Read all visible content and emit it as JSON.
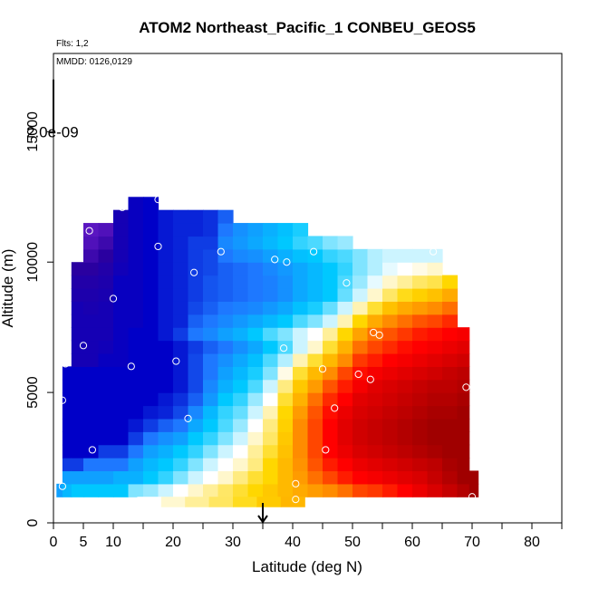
{
  "chart_data": {
    "type": "heatmap",
    "title": "ATOM2 Northeast_Pacific_1 CONBEU_GEOS5",
    "flights_note": "Flts: 1,2",
    "dates_note": "MMDD: 0126,0129",
    "xlabel": "Latitude (deg N)",
    "ylabel": "Altitude (m)",
    "xlim": [
      0,
      85
    ],
    "ylim": [
      0,
      18000
    ],
    "x_ticks": [
      0,
      5,
      10,
      20,
      30,
      40,
      50,
      60,
      70,
      80
    ],
    "x_minor_ticks": [
      15,
      25,
      35,
      45,
      55,
      65,
      75,
      85
    ],
    "y_ticks": [
      0,
      5000,
      10000,
      15000
    ],
    "scale_bar_label": "2.0e-09",
    "scale_bar_top_altitude": 17000,
    "scale_bar_bottom_altitude": 15000,
    "arrow_latitude": 35,
    "grid": false,
    "colormap": [
      "#8a2be2",
      "#2a00a0",
      "#0000c8",
      "#1e78ff",
      "#00c8ff",
      "#ffffff",
      "#ffd700",
      "#ff8c00",
      "#ff0000",
      "#a00000"
    ],
    "columns": [
      {
        "lat": 0.5,
        "top": 1500,
        "values": [
          3.5
        ]
      },
      {
        "lat": 1.5,
        "top": 6500,
        "values": [
          3.8,
          3.5,
          2.5,
          2.0,
          2.0,
          2.0,
          2.0,
          2.0,
          2.0,
          2.0
        ]
      },
      {
        "lat": 3,
        "top": 10000,
        "values": [
          4.0,
          3.5,
          2.5,
          2.0,
          2.0,
          2.0,
          2.0,
          2.0,
          2.0,
          2.0,
          1.5,
          1.5,
          1.5,
          1.5,
          1.5,
          1.3,
          1.2,
          1.0,
          1.0,
          0.8
        ]
      },
      {
        "lat": 5,
        "top": 11500,
        "values": [
          4.0,
          3.5,
          3.0,
          2.0,
          2.0,
          2.0,
          2.0,
          2.0,
          2.0,
          2.0,
          1.5,
          1.5,
          1.5,
          1.5,
          1.4,
          1.3,
          1.2,
          1.0,
          0.8,
          0.6,
          0.5,
          0.5,
          0.5
        ]
      },
      {
        "lat": 7.5,
        "top": 11500,
        "values": [
          4.0,
          3.5,
          3.0,
          2.5,
          2.0,
          2.0,
          2.0,
          2.0,
          2.0,
          2.0,
          1.8,
          1.6,
          1.5,
          1.5,
          1.5,
          1.4,
          1.3,
          1.2,
          1.0,
          0.8,
          0.6,
          0.5,
          0.5
        ]
      },
      {
        "lat": 10,
        "top": 12000,
        "values": [
          4.0,
          3.7,
          3.0,
          2.5,
          2.0,
          2.0,
          2.0,
          2.0,
          2.0,
          2.0,
          1.8,
          1.8,
          1.8,
          1.8,
          1.8,
          1.8,
          1.8,
          1.6,
          1.5,
          1.5,
          1.5,
          1.5,
          1.5,
          1.5
        ]
      },
      {
        "lat": 12.5,
        "top": 12500,
        "values": [
          4.5,
          3.7,
          3.5,
          3.0,
          2.5,
          2.2,
          2.0,
          2.0,
          2.0,
          2.0,
          2.0,
          2.0,
          2.0,
          1.8,
          1.8,
          1.8,
          1.8,
          1.8,
          1.8,
          1.8,
          1.8,
          1.8,
          1.8,
          1.8,
          1.8
        ]
      },
      {
        "lat": 15,
        "top": 12500,
        "values": [
          4.6,
          4.0,
          3.8,
          3.5,
          3.0,
          2.5,
          2.2,
          2.0,
          2.0,
          2.0,
          2.0,
          2.0,
          2.0,
          2.0,
          2.0,
          2.0,
          2.0,
          2.0,
          2.0,
          2.0,
          2.0,
          2.0,
          2.0,
          2.0,
          2.0
        ]
      },
      {
        "lat": 17.5,
        "top": 12000,
        "values": [
          4.8,
          4.2,
          4.0,
          3.7,
          3.3,
          2.8,
          2.3,
          2.2,
          2.0,
          2.0,
          2.0,
          2.0,
          2.2,
          2.2,
          2.2,
          2.2,
          2.2,
          2.2,
          2.2,
          2.2,
          2.2,
          2.2,
          2.2,
          2.2
        ]
      },
      {
        "lat": 20,
        "top": 12000,
        "values": [
          5.0,
          4.5,
          4.2,
          4.0,
          3.5,
          3.0,
          2.6,
          2.4,
          2.2,
          2.2,
          2.2,
          2.2,
          2.5,
          2.3,
          2.3,
          2.3,
          2.3,
          2.3,
          2.3,
          2.3,
          2.3,
          2.3,
          2.3,
          2.3
        ]
      },
      {
        "lat": 22.5,
        "top": 12000,
        "values": [
          5.2,
          4.8,
          4.5,
          4.2,
          4.0,
          3.6,
          3.2,
          2.8,
          2.6,
          2.6,
          2.6,
          2.5,
          3.0,
          2.8,
          2.6,
          2.5,
          2.5,
          2.5,
          2.5,
          2.5,
          2.3,
          2.3,
          2.3,
          2.3
        ]
      },
      {
        "lat": 25,
        "top": 12000,
        "values": [
          5.4,
          5.0,
          4.8,
          4.5,
          4.2,
          4.0,
          3.8,
          3.4,
          3.2,
          3.0,
          3.0,
          2.8,
          3.2,
          3.0,
          2.8,
          2.7,
          2.7,
          2.6,
          2.6,
          2.5,
          2.4,
          2.4,
          2.3,
          2.3
        ]
      },
      {
        "lat": 27.5,
        "top": 12000,
        "values": [
          5.6,
          5.2,
          5.0,
          4.8,
          4.5,
          4.3,
          4.2,
          4.0,
          3.7,
          3.5,
          3.3,
          3.0,
          3.5,
          3.2,
          3.0,
          2.8,
          2.8,
          2.8,
          3.0,
          3.2,
          3.0,
          2.8,
          2.6,
          2.5
        ]
      },
      {
        "lat": 30,
        "top": 11500,
        "values": [
          5.8,
          5.5,
          5.2,
          5.0,
          4.8,
          4.6,
          4.4,
          4.2,
          4.0,
          3.8,
          3.6,
          3.3,
          3.7,
          3.4,
          3.1,
          2.9,
          2.9,
          2.9,
          3.2,
          3.4,
          3.3,
          3.0,
          2.8
        ]
      },
      {
        "lat": 32.5,
        "top": 11500,
        "values": [
          6.0,
          5.8,
          5.5,
          5.4,
          5.2,
          5.0,
          4.8,
          4.6,
          4.3,
          4.1,
          3.9,
          3.6,
          4.0,
          3.6,
          3.2,
          3.0,
          3.0,
          3.0,
          3.3,
          3.6,
          3.5,
          3.2,
          3.0
        ]
      },
      {
        "lat": 35,
        "top": 11500,
        "values": [
          6.2,
          6.0,
          6.0,
          5.8,
          5.6,
          5.5,
          5.3,
          5.0,
          4.8,
          4.5,
          4.3,
          4.0,
          4.3,
          3.8,
          3.4,
          3.1,
          3.1,
          3.2,
          3.5,
          3.8,
          3.7,
          3.4,
          3.2
        ]
      },
      {
        "lat": 37.5,
        "top": 11500,
        "values": [
          6.4,
          6.4,
          6.4,
          6.3,
          6.2,
          6.1,
          6.0,
          5.8,
          5.5,
          5.1,
          4.7,
          4.3,
          4.5,
          4.0,
          3.6,
          3.3,
          3.3,
          3.4,
          3.7,
          4.0,
          3.9,
          3.6,
          3.3
        ]
      },
      {
        "lat": 40,
        "top": 11500,
        "values": [
          6.6,
          6.8,
          6.9,
          7.0,
          7.0,
          7.0,
          6.8,
          6.5,
          6.2,
          5.8,
          5.3,
          4.8,
          4.8,
          4.3,
          3.9,
          3.6,
          3.6,
          3.6,
          3.9,
          4.2,
          4.1,
          3.8,
          3.5
        ]
      },
      {
        "lat": 42.5,
        "top": 11000,
        "values": [
          6.8,
          7.2,
          7.4,
          7.5,
          7.5,
          7.5,
          7.4,
          7.2,
          6.8,
          6.4,
          5.8,
          5.2,
          5.0,
          4.5,
          4.1,
          3.8,
          3.8,
          3.8,
          4.0,
          4.3,
          4.2,
          3.9
        ]
      },
      {
        "lat": 45,
        "top": 11000,
        "values": [
          7.0,
          7.5,
          7.8,
          8.0,
          8.0,
          8.0,
          7.9,
          7.7,
          7.4,
          7.0,
          6.4,
          5.8,
          5.4,
          4.8,
          4.4,
          4.0,
          4.0,
          4.0,
          4.2,
          4.5,
          4.4,
          4.0
        ]
      },
      {
        "lat": 47.5,
        "top": 11000,
        "values": [
          7.2,
          7.8,
          8.0,
          8.2,
          8.3,
          8.3,
          8.2,
          8.0,
          7.8,
          7.5,
          7.0,
          6.5,
          6.0,
          5.3,
          4.8,
          4.4,
          4.3,
          4.2,
          4.3,
          4.6,
          4.5,
          4.1
        ]
      },
      {
        "lat": 50,
        "top": 10500,
        "values": [
          7.5,
          8.0,
          8.2,
          8.4,
          8.5,
          8.5,
          8.4,
          8.3,
          8.1,
          7.9,
          7.6,
          7.2,
          6.7,
          6.0,
          5.3,
          4.8,
          4.6,
          4.5,
          4.5,
          4.7,
          4.6
        ]
      },
      {
        "lat": 52.5,
        "top": 10500,
        "values": [
          7.6,
          8.1,
          8.3,
          8.5,
          8.6,
          8.6,
          8.5,
          8.4,
          8.3,
          8.1,
          7.8,
          7.5,
          7.2,
          6.6,
          5.8,
          5.2,
          4.9,
          4.7,
          4.7,
          4.8,
          4.7
        ]
      },
      {
        "lat": 55,
        "top": 10500,
        "values": [
          7.8,
          8.2,
          8.4,
          8.6,
          8.7,
          8.7,
          8.6,
          8.5,
          8.4,
          8.2,
          8.0,
          7.7,
          7.4,
          7.0,
          6.3,
          5.6,
          5.2,
          4.9,
          4.8,
          4.9,
          4.8
        ]
      },
      {
        "lat": 57.5,
        "top": 10500,
        "values": [
          8.0,
          8.3,
          8.5,
          8.7,
          8.8,
          8.8,
          8.7,
          8.6,
          8.5,
          8.3,
          8.1,
          7.9,
          7.6,
          7.2,
          6.6,
          5.9,
          5.4,
          5.0,
          4.8,
          4.8,
          4.7
        ]
      },
      {
        "lat": 60,
        "top": 10500,
        "values": [
          8.2,
          8.4,
          8.6,
          8.8,
          8.9,
          8.9,
          8.8,
          8.7,
          8.6,
          8.4,
          8.2,
          8.0,
          7.8,
          7.4,
          6.8,
          6.1,
          5.6,
          5.1,
          4.8,
          4.7,
          4.5
        ]
      },
      {
        "lat": 62.5,
        "top": 10500,
        "values": [
          8.4,
          8.6,
          8.7,
          8.9,
          9.0,
          9.0,
          8.9,
          8.8,
          8.7,
          8.5,
          8.3,
          8.1,
          7.9,
          7.5,
          7.0,
          6.3,
          5.7,
          5.2,
          4.8,
          4.5,
          4.2
        ]
      },
      {
        "lat": 65,
        "top": 9500,
        "values": [
          8.6,
          8.8,
          8.9,
          9.0,
          9.0,
          9.0,
          8.9,
          8.8,
          8.7,
          8.6,
          8.4,
          8.2,
          8.0,
          7.7,
          7.2,
          6.6,
          6.0,
          5.4,
          5.0
        ]
      },
      {
        "lat": 67.5,
        "top": 7500,
        "values": [
          8.8,
          9.0,
          9.0,
          9.0,
          9.0,
          9.0,
          9.0,
          8.9,
          8.8,
          8.7,
          8.5,
          8.3,
          8.1,
          7.8,
          7.4
        ]
      },
      {
        "lat": 69.5,
        "top": 2000,
        "values": [
          9.2,
          9.2,
          9.0,
          9.0
        ]
      }
    ],
    "points": [
      [
        1.5,
        1400
      ],
      [
        1.5,
        4700
      ],
      [
        2,
        6100
      ],
      [
        3,
        10300
      ],
      [
        4,
        11200
      ],
      [
        5,
        6800
      ],
      [
        6,
        11200
      ],
      [
        6.5,
        2800
      ],
      [
        10,
        8600
      ],
      [
        11.5,
        12100
      ],
      [
        13,
        6000
      ],
      [
        17.5,
        12400
      ],
      [
        17.5,
        10600
      ],
      [
        20.5,
        6200
      ],
      [
        22.5,
        4000
      ],
      [
        23.5,
        9600
      ],
      [
        28,
        10400
      ],
      [
        37,
        10100
      ],
      [
        38.5,
        6700
      ],
      [
        39,
        10000
      ],
      [
        40.5,
        1500
      ],
      [
        40.5,
        900
      ],
      [
        43.5,
        10400
      ],
      [
        45,
        5900
      ],
      [
        45.5,
        2800
      ],
      [
        47,
        4400
      ],
      [
        49,
        9200
      ],
      [
        51,
        5700
      ],
      [
        53,
        5500
      ],
      [
        53.5,
        7300
      ],
      [
        54.5,
        7200
      ],
      [
        63.5,
        10400
      ],
      [
        69,
        5200
      ],
      [
        70,
        1000
      ]
    ]
  }
}
